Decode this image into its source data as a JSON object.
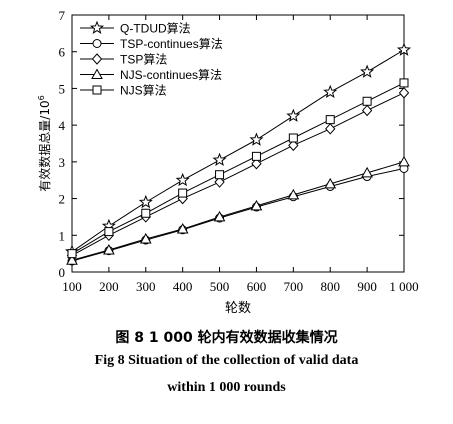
{
  "chart_data": {
    "type": "line",
    "xlabel": "轮数",
    "ylabel": "有效数据总量/10",
    "ylabel_exponent": "6",
    "xlim": [
      100,
      1000
    ],
    "ylim": [
      0,
      7
    ],
    "x": [
      100,
      200,
      300,
      400,
      500,
      600,
      700,
      800,
      900,
      1000
    ],
    "x_tick_labels": [
      "100",
      "200",
      "300",
      "400",
      "500",
      "600",
      "700",
      "800",
      "900",
      "1 000"
    ],
    "y_ticks": [
      0,
      1,
      2,
      3,
      4,
      5,
      6,
      7
    ],
    "y_tick_labels": [
      "0",
      "1",
      "2",
      "3",
      "4",
      "5",
      "6",
      "7"
    ],
    "grid": false,
    "legend_position": "top-left",
    "series": [
      {
        "name": "Q-TDUD算法",
        "marker": "star",
        "values": [
          0.55,
          1.25,
          1.9,
          2.5,
          3.05,
          3.6,
          4.25,
          4.9,
          5.45,
          6.05
        ]
      },
      {
        "name": "TSP-continues算法",
        "marker": "circle",
        "values": [
          0.3,
          0.58,
          0.87,
          1.15,
          1.47,
          1.77,
          2.05,
          2.33,
          2.6,
          2.82
        ]
      },
      {
        "name": "TSP算法",
        "marker": "diamond",
        "values": [
          0.45,
          1.0,
          1.5,
          2.0,
          2.45,
          2.95,
          3.45,
          3.9,
          4.4,
          4.88
        ]
      },
      {
        "name": "NJS-continues算法",
        "marker": "triangle",
        "values": [
          0.32,
          0.6,
          0.9,
          1.17,
          1.5,
          1.8,
          2.1,
          2.4,
          2.7,
          3.0
        ]
      },
      {
        "name": "NJS算法",
        "marker": "square",
        "values": [
          0.5,
          1.1,
          1.6,
          2.15,
          2.65,
          3.15,
          3.65,
          4.15,
          4.65,
          5.15
        ]
      }
    ]
  },
  "caption": {
    "zh": "图 8    1 000 轮内有效数据收集情况",
    "en_line1": "Fig 8    Situation of the collection of valid data",
    "en_line2": "within 1 000 rounds"
  }
}
